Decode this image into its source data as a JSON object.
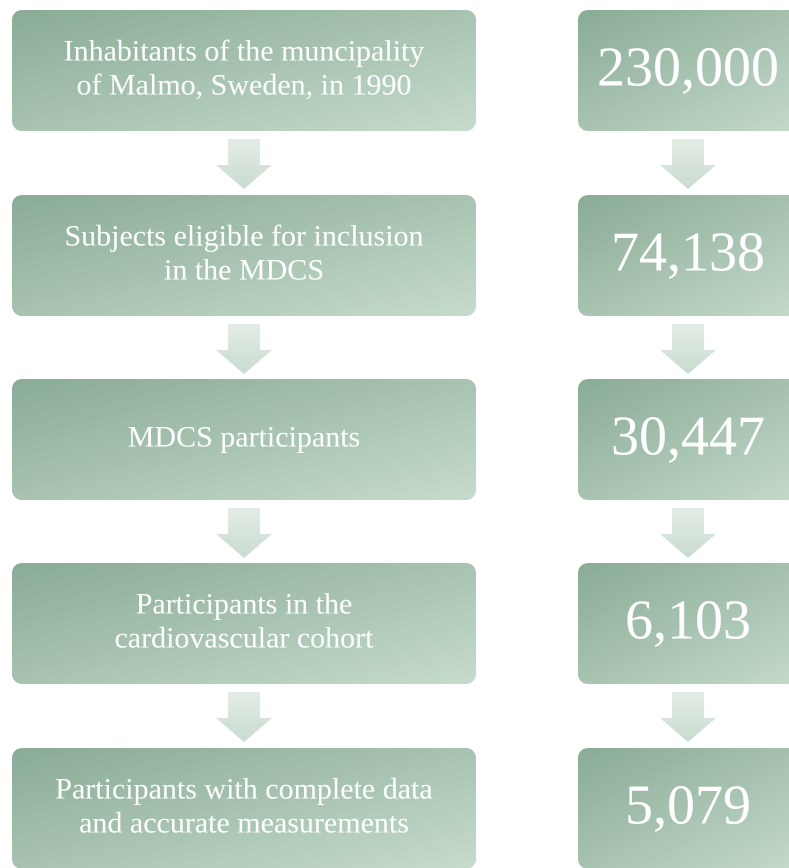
{
  "nodes": [
    {
      "label": [
        "Inhabitants of the muncipality",
        "of Malmo, Sweden, in 1990"
      ],
      "count": "230,000"
    },
    {
      "label": [
        "Subjects eligible for inclusion",
        "in the MDCS"
      ],
      "count": "74,138"
    },
    {
      "label": [
        "MDCS participants"
      ],
      "count": "30,447"
    },
    {
      "label": [
        "Participants in the",
        "cardiovascular cohort"
      ],
      "count": "6,103"
    },
    {
      "label": [
        "Participants with complete data",
        "and accurate measurements"
      ],
      "count": "5,079"
    }
  ]
}
